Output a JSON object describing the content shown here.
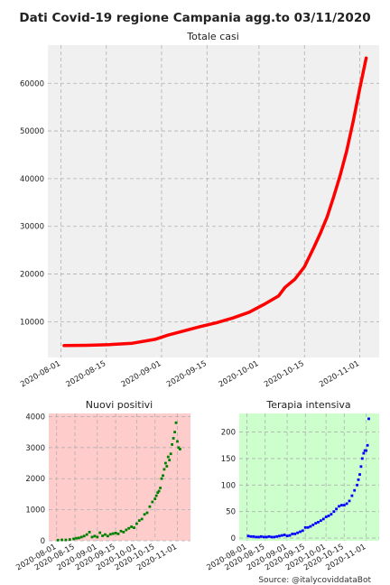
{
  "suptitle": "Dati Covid-19 regione Campania agg.to 03/11/2020",
  "source": "Source: @italycoviddataBot",
  "colors": {
    "panel_bg_main": "#f0f0f0",
    "panel_bg_positivi": "#ffcccc",
    "panel_bg_terapia": "#ccffcc",
    "grid": "#b0b0b0",
    "totale_line": "#ff0000",
    "positivi_points": "#008000",
    "terapia_points": "#0000ff"
  },
  "chart_data": [
    {
      "id": "totale",
      "type": "line",
      "title": "Totale casi",
      "xlabel": "",
      "ylabel": "",
      "x_start": "2020-08-01",
      "x_ticks": [
        "2020-08-01",
        "2020-08-15",
        "2020-09-01",
        "2020-09-15",
        "2020-10-01",
        "2020-10-15",
        "2020-11-01"
      ],
      "ylim": [
        2500,
        68000
      ],
      "y_ticks": [
        10000,
        20000,
        30000,
        40000,
        50000,
        60000
      ],
      "grid": true,
      "series": [
        {
          "x": [
            "2020-08-02",
            "2020-08-09",
            "2020-08-16",
            "2020-08-23",
            "2020-08-30",
            "2020-09-03",
            "2020-09-08",
            "2020-09-13",
            "2020-09-18",
            "2020-09-23",
            "2020-09-28",
            "2020-10-03",
            "2020-10-07",
            "2020-10-09",
            "2020-10-12",
            "2020-10-15",
            "2020-10-18",
            "2020-10-20",
            "2020-10-22",
            "2020-10-24",
            "2020-10-26",
            "2020-10-28",
            "2020-10-30",
            "2020-11-01",
            "2020-11-03"
          ],
          "values": [
            5000,
            5050,
            5200,
            5500,
            6300,
            7200,
            8100,
            9000,
            9800,
            10800,
            12000,
            13800,
            15400,
            17200,
            18900,
            21500,
            25700,
            28700,
            32000,
            36200,
            40700,
            45800,
            52000,
            58800,
            65300
          ]
        }
      ]
    },
    {
      "id": "positivi",
      "type": "scatter",
      "title": "Nuovi positivi",
      "xlabel": "",
      "ylabel": "",
      "x_start": "2020-08-01",
      "x_ticks": [
        "2020-08-01",
        "2020-08-15",
        "2020-09-01",
        "2020-09-15",
        "2020-10-01",
        "2020-10-15",
        "2020-11-01"
      ],
      "ylim": [
        0,
        4100
      ],
      "y_ticks": [
        0,
        1000,
        2000,
        3000,
        4000
      ],
      "grid": true,
      "series": [
        {
          "x": [
            "2020-08-02",
            "2020-08-05",
            "2020-08-08",
            "2020-08-11",
            "2020-08-14",
            "2020-08-16",
            "2020-08-18",
            "2020-08-20",
            "2020-08-22",
            "2020-08-24",
            "2020-08-26",
            "2020-08-28",
            "2020-08-30",
            "2020-09-01",
            "2020-09-03",
            "2020-09-05",
            "2020-09-07",
            "2020-09-09",
            "2020-09-11",
            "2020-09-13",
            "2020-09-15",
            "2020-09-17",
            "2020-09-19",
            "2020-09-21",
            "2020-09-23",
            "2020-09-25",
            "2020-09-27",
            "2020-09-29",
            "2020-10-01",
            "2020-10-03",
            "2020-10-05",
            "2020-10-07",
            "2020-10-09",
            "2020-10-11",
            "2020-10-13",
            "2020-10-15",
            "2020-10-16",
            "2020-10-17",
            "2020-10-18",
            "2020-10-19",
            "2020-10-20",
            "2020-10-21",
            "2020-10-22",
            "2020-10-23",
            "2020-10-24",
            "2020-10-25",
            "2020-10-26",
            "2020-10-27",
            "2020-10-28",
            "2020-10-29",
            "2020-10-30",
            "2020-10-31",
            "2020-11-01",
            "2020-11-02",
            "2020-11-03"
          ],
          "values": [
            20,
            30,
            25,
            40,
            60,
            80,
            90,
            120,
            150,
            200,
            280,
            120,
            150,
            120,
            260,
            160,
            200,
            150,
            210,
            230,
            250,
            220,
            310,
            280,
            350,
            400,
            450,
            420,
            550,
            650,
            700,
            850,
            900,
            1100,
            1250,
            1350,
            1450,
            1550,
            1600,
            1700,
            2000,
            2100,
            2300,
            2500,
            2400,
            2700,
            2600,
            2800,
            3100,
            3300,
            3500,
            3800,
            3200,
            3000,
            2950
          ]
        }
      ]
    },
    {
      "id": "terapia",
      "type": "scatter",
      "title": "Terapia intensiva",
      "xlabel": "",
      "ylabel": "",
      "x_start": "2020-08-01",
      "x_ticks": [
        "2020-08-01",
        "2020-08-15",
        "2020-09-01",
        "2020-09-15",
        "2020-10-01",
        "2020-10-15",
        "2020-11-01"
      ],
      "ylim": [
        -5,
        235
      ],
      "y_ticks": [
        0,
        50,
        100,
        150,
        200
      ],
      "grid": true,
      "series": [
        {
          "x": [
            "2020-08-02",
            "2020-08-04",
            "2020-08-06",
            "2020-08-08",
            "2020-08-10",
            "2020-08-12",
            "2020-08-14",
            "2020-08-16",
            "2020-08-18",
            "2020-08-20",
            "2020-08-22",
            "2020-08-24",
            "2020-08-26",
            "2020-08-28",
            "2020-08-30",
            "2020-09-01",
            "2020-09-03",
            "2020-09-05",
            "2020-09-07",
            "2020-09-09",
            "2020-09-11",
            "2020-09-13",
            "2020-09-15",
            "2020-09-17",
            "2020-09-19",
            "2020-09-21",
            "2020-09-23",
            "2020-09-25",
            "2020-09-27",
            "2020-09-29",
            "2020-10-01",
            "2020-10-03",
            "2020-10-05",
            "2020-10-07",
            "2020-10-09",
            "2020-10-11",
            "2020-10-13",
            "2020-10-15",
            "2020-10-17",
            "2020-10-19",
            "2020-10-21",
            "2020-10-23",
            "2020-10-25",
            "2020-10-26",
            "2020-10-27",
            "2020-10-28",
            "2020-10-29",
            "2020-10-30",
            "2020-10-31",
            "2020-11-01",
            "2020-11-02",
            "2020-11-03"
          ],
          "values": [
            4,
            3,
            3,
            2,
            2,
            3,
            2,
            2,
            3,
            2,
            2,
            3,
            4,
            5,
            6,
            4,
            5,
            8,
            8,
            10,
            12,
            14,
            20,
            20,
            22,
            25,
            28,
            30,
            33,
            36,
            40,
            42,
            45,
            50,
            55,
            60,
            62,
            62,
            65,
            70,
            80,
            90,
            100,
            110,
            120,
            135,
            150,
            160,
            165,
            165,
            175,
            225
          ]
        }
      ]
    }
  ]
}
